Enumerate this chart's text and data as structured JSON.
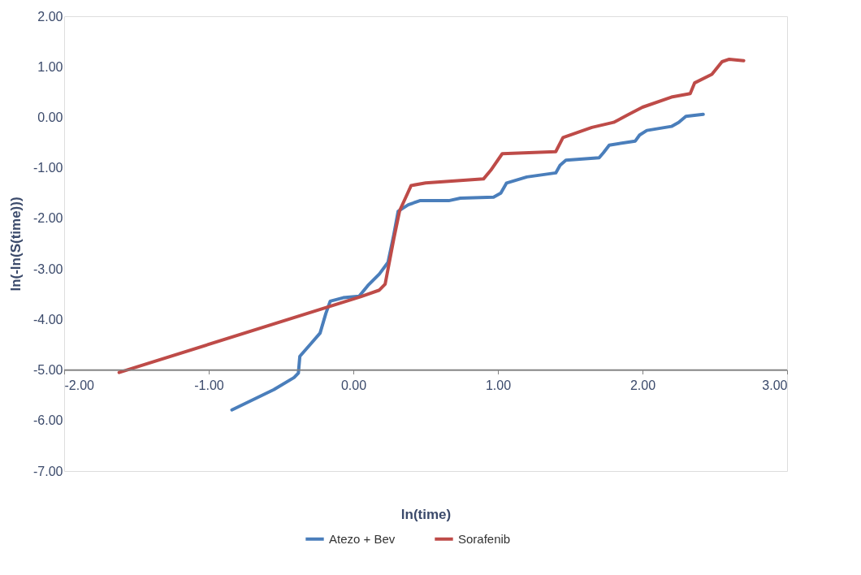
{
  "chart_data": {
    "type": "line",
    "xlabel": "ln(time)",
    "ylabel": "ln(-ln(S(time)))",
    "xlim": [
      -2,
      3
    ],
    "ylim": [
      -7,
      2
    ],
    "xticks": [
      {
        "value": -2,
        "label": "-2.00"
      },
      {
        "value": -1,
        "label": "-1.00"
      },
      {
        "value": 0,
        "label": "0.00"
      },
      {
        "value": 1,
        "label": "1.00"
      },
      {
        "value": 2,
        "label": "2.00"
      },
      {
        "value": 3,
        "label": "3.00"
      }
    ],
    "yticks": [
      {
        "value": -7,
        "label": "-7.00"
      },
      {
        "value": -6,
        "label": "-6.00"
      },
      {
        "value": -5,
        "label": "-5.00"
      },
      {
        "value": -4,
        "label": "-4.00"
      },
      {
        "value": -3,
        "label": "-3.00"
      },
      {
        "value": -2,
        "label": "-2.00"
      },
      {
        "value": -1,
        "label": "-1.00"
      },
      {
        "value": 0,
        "label": "0.00"
      },
      {
        "value": 1,
        "label": "1.00"
      },
      {
        "value": 2,
        "label": "2.00"
      }
    ],
    "ref_lines": [
      {
        "axis": "y",
        "value": -5,
        "color": "#808080"
      }
    ],
    "grid": false,
    "legend": "bottom",
    "marker": "none",
    "line_style": "solid",
    "series": [
      {
        "name": "Atezo + Bev",
        "color": "#4a7ebb",
        "x": [
          -0.84,
          -0.55,
          -0.41,
          -0.38,
          -0.37,
          -0.3,
          -0.23,
          -0.19,
          -0.16,
          -0.07,
          0.04,
          0.1,
          0.18,
          0.24,
          0.28,
          0.31,
          0.38,
          0.46,
          0.66,
          0.74,
          0.97,
          1.02,
          1.06,
          1.2,
          1.4,
          1.43,
          1.47,
          1.7,
          1.73,
          1.77,
          1.95,
          1.98,
          2.03,
          2.2,
          2.25,
          2.3,
          2.42
        ],
        "values": [
          -5.79,
          -5.39,
          -5.15,
          -5.06,
          -4.73,
          -4.5,
          -4.27,
          -3.88,
          -3.64,
          -3.57,
          -3.54,
          -3.33,
          -3.1,
          -2.87,
          -2.32,
          -1.86,
          -1.73,
          -1.65,
          -1.65,
          -1.6,
          -1.58,
          -1.5,
          -1.3,
          -1.18,
          -1.1,
          -0.95,
          -0.85,
          -0.8,
          -0.7,
          -0.55,
          -0.47,
          -0.35,
          -0.26,
          -0.18,
          -0.1,
          0.02,
          0.06
        ]
      },
      {
        "name": "Sorafenib",
        "color": "#be4b48",
        "x": [
          -1.62,
          0.05,
          0.18,
          0.22,
          0.28,
          0.32,
          0.36,
          0.4,
          0.5,
          0.9,
          0.95,
          1.03,
          1.4,
          1.45,
          1.55,
          1.65,
          1.8,
          1.9,
          2.0,
          2.2,
          2.33,
          2.36,
          2.48,
          2.55,
          2.6,
          2.7
        ],
        "values": [
          -5.05,
          -3.55,
          -3.42,
          -3.3,
          -2.4,
          -1.85,
          -1.6,
          -1.35,
          -1.3,
          -1.22,
          -1.05,
          -0.72,
          -0.68,
          -0.4,
          -0.3,
          -0.2,
          -0.1,
          0.05,
          0.2,
          0.4,
          0.47,
          0.68,
          0.85,
          1.1,
          1.15,
          1.12
        ]
      }
    ]
  }
}
